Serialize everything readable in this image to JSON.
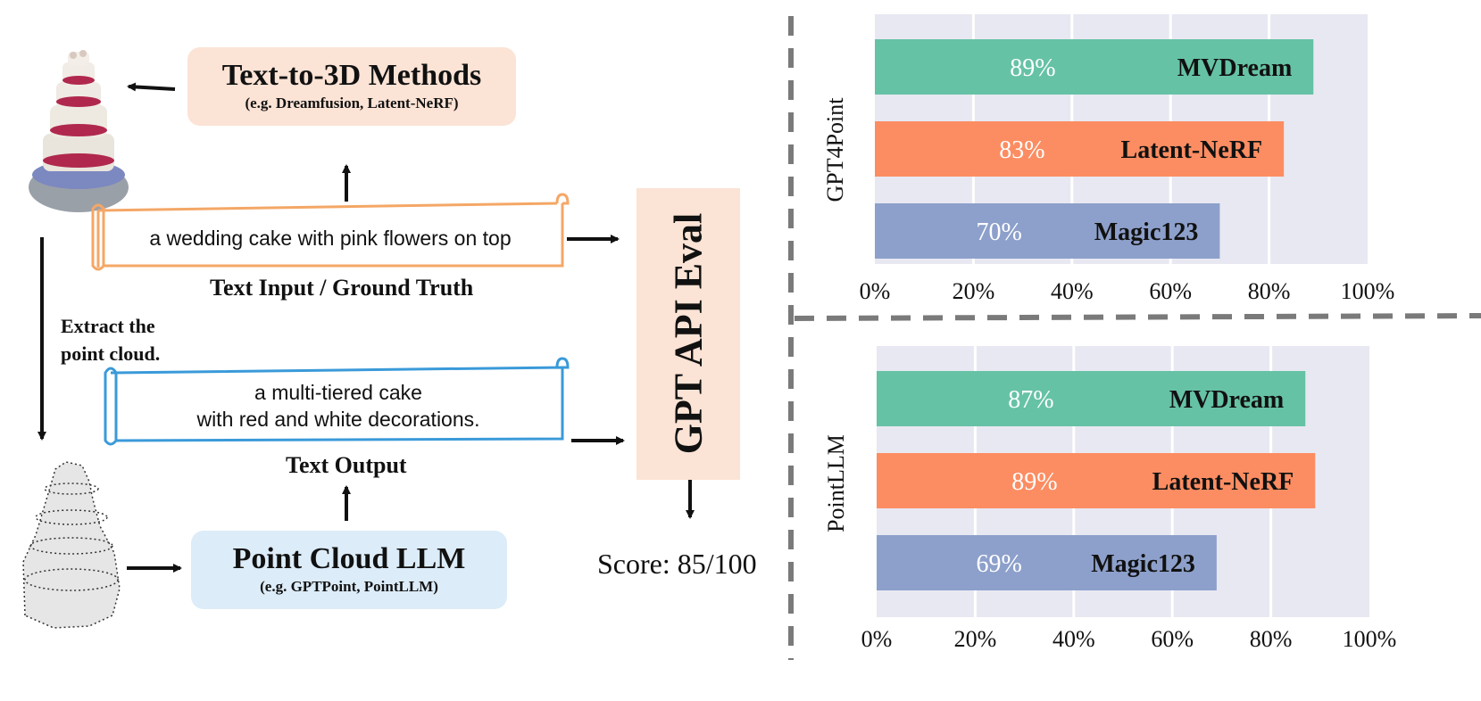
{
  "pipeline": {
    "methods_box": {
      "title": "Text-to-3D Methods",
      "subtitle": "(e.g. Dreamfusion, Latent-NeRF)",
      "fill": "#fbe3d5"
    },
    "llm_box": {
      "title": "Point Cloud LLM",
      "subtitle": "(e.g. GPTPoint, PointLLM)",
      "fill": "#dcecf8"
    },
    "eval_box": {
      "title": "GPT API Eval",
      "fill": "#fbe3d5"
    },
    "input_text": "a wedding cake with pink flowers on top",
    "input_caption": "Text Input / Ground Truth",
    "output_text_line1": "a multi-tiered cake",
    "output_text_line2": "with red and white decorations.",
    "output_caption": "Text Output",
    "extract_label_line1": "Extract the",
    "extract_label_line2": "point cloud.",
    "score": "Score: 85/100",
    "input_scroll_color": "#f4a766",
    "output_scroll_color": "#3a9ad9"
  },
  "chart_data": [
    {
      "type": "bar",
      "orientation": "horizontal",
      "ylabel": "GPT4Point",
      "categories": [
        "MVDream",
        "Latent-NeRF",
        "Magic123"
      ],
      "values": [
        89,
        83,
        70
      ],
      "value_labels": [
        "89%",
        "83%",
        "70%"
      ],
      "colors": [
        "#66c2a5",
        "#fc8d62",
        "#8da0cb"
      ],
      "xlim": [
        0,
        100
      ],
      "xticks": [
        "0%",
        "20%",
        "40%",
        "60%",
        "80%",
        "100%"
      ],
      "grid": true,
      "background": "#e8e8f2"
    },
    {
      "type": "bar",
      "orientation": "horizontal",
      "ylabel": "PointLLM",
      "categories": [
        "MVDream",
        "Latent-NeRF",
        "Magic123"
      ],
      "values": [
        87,
        89,
        69
      ],
      "value_labels": [
        "87%",
        "89%",
        "69%"
      ],
      "colors": [
        "#66c2a5",
        "#fc8d62",
        "#8da0cb"
      ],
      "xlim": [
        0,
        100
      ],
      "xticks": [
        "0%",
        "20%",
        "40%",
        "60%",
        "80%",
        "100%"
      ],
      "grid": true,
      "background": "#e8e8f2"
    }
  ]
}
